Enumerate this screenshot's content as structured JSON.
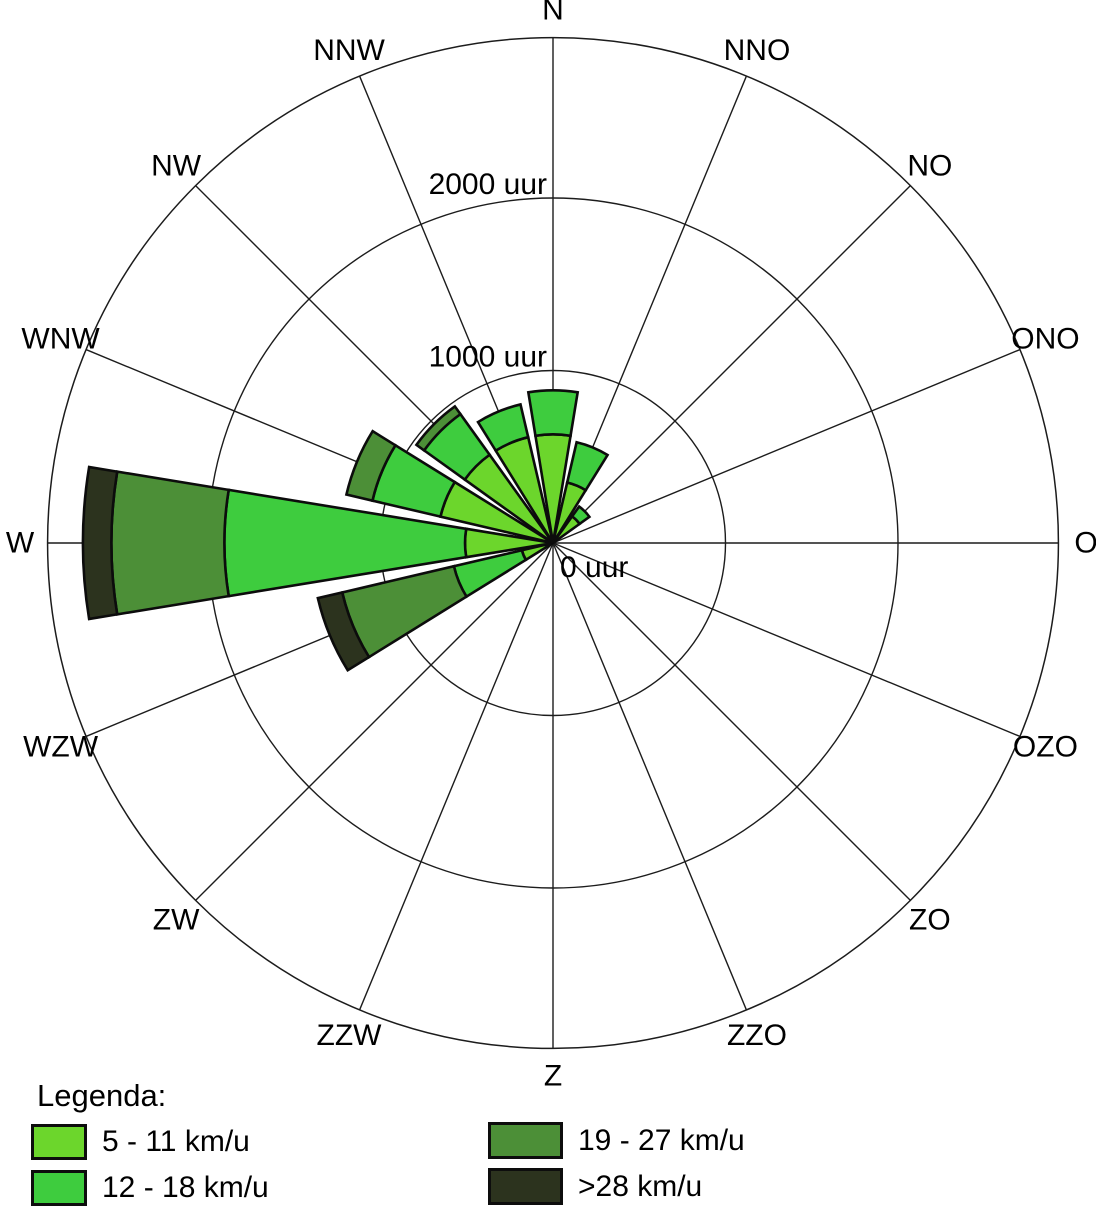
{
  "legend": {
    "title": "Legenda:",
    "items": [
      {
        "label": "5 - 11 km/u",
        "color": "#6cd62c"
      },
      {
        "label": "12 - 18 km/u",
        "color": "#3ecc3e"
      },
      {
        "label": "19 - 27 km/u",
        "color": "#4c8f37"
      },
      {
        "label": ">28 km/u",
        "color": "#2c331e"
      }
    ]
  },
  "chart_data": {
    "type": "wind-rose-stacked-polar-bar",
    "title": "",
    "unit": "uur",
    "directions": [
      "N",
      "NNO",
      "NO",
      "ONO",
      "O",
      "OZO",
      "ZO",
      "ZZO",
      "Z",
      "ZZW",
      "ZW",
      "WZW",
      "W",
      "WNW",
      "NW",
      "NNW"
    ],
    "ring_ticks": [
      {
        "value": 0,
        "label": "0 uur"
      },
      {
        "value": 1000,
        "label": "1000 uur"
      },
      {
        "value": 2000,
        "label": "2000 uur"
      }
    ],
    "outer_boundary_value": 2930,
    "grid_color": "#1c1c1c",
    "petal_outline_color": "#0c0c0c",
    "series": [
      {
        "name": "5 - 11 km/u",
        "values": [
          630,
          360,
          190,
          0,
          0,
          0,
          0,
          0,
          0,
          0,
          0,
          185,
          510,
          670,
          630,
          630
        ]
      },
      {
        "name": "12 - 18 km/u",
        "values": [
          255,
          240,
          70,
          0,
          0,
          0,
          0,
          0,
          0,
          0,
          0,
          405,
          1395,
          405,
          290,
          195
        ]
      },
      {
        "name": "19 - 27 km/u",
        "values": [
          0,
          0,
          0,
          0,
          0,
          0,
          0,
          0,
          0,
          0,
          0,
          665,
          655,
          155,
          55,
          0
        ]
      },
      {
        "name": ">28 km/u",
        "values": [
          0,
          0,
          0,
          0,
          0,
          0,
          0,
          0,
          0,
          0,
          0,
          145,
          165,
          0,
          0,
          0
        ]
      }
    ],
    "totals_note": "values are hours (uur) per wind direction, stacked by speed bin"
  }
}
